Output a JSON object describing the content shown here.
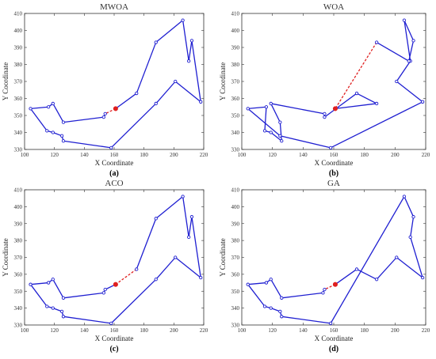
{
  "chart_data": [
    {
      "type": "line",
      "title": "MWOA",
      "caption": "(a)",
      "xlabel": "X Coordinate",
      "ylabel": "Y Coordinate",
      "xlim": [
        100,
        220
      ],
      "ylim": [
        330,
        410
      ],
      "xticks": [
        "100",
        "120",
        "140",
        "160",
        "180",
        "200",
        "220"
      ],
      "yticks": [
        "330",
        "340",
        "350",
        "360",
        "370",
        "380",
        "390",
        "400",
        "410"
      ],
      "grid": false,
      "line_color": "#1f1fd1",
      "start_color": "#e02020",
      "route": [
        [
          161,
          354
        ],
        [
          154,
          351
        ],
        [
          153,
          349
        ],
        [
          126,
          346
        ],
        [
          119,
          357
        ],
        [
          116,
          355
        ],
        [
          104,
          354
        ],
        [
          115,
          341
        ],
        [
          119,
          340
        ],
        [
          125,
          338
        ],
        [
          126,
          335
        ],
        [
          158,
          331
        ],
        [
          188,
          357
        ],
        [
          201,
          370
        ],
        [
          218,
          358
        ],
        [
          212,
          394
        ],
        [
          210,
          382
        ],
        [
          206,
          406
        ],
        [
          188,
          393
        ],
        [
          175,
          363
        ],
        [
          161,
          354
        ]
      ],
      "dashed_segments": [
        [
          0,
          1
        ]
      ]
    },
    {
      "type": "line",
      "title": "WOA",
      "caption": "(b)",
      "xlabel": "X Coordinate",
      "ylabel": "Y Coordinate",
      "xlim": [
        100,
        220
      ],
      "ylim": [
        330,
        410
      ],
      "xticks": [
        "100",
        "120",
        "140",
        "160",
        "180",
        "200",
        "220"
      ],
      "yticks": [
        "330",
        "340",
        "350",
        "360",
        "370",
        "380",
        "390",
        "400",
        "410"
      ],
      "grid": false,
      "line_color": "#1f1fd1",
      "start_color": "#e02020",
      "route": [
        [
          161,
          354
        ],
        [
          188,
          357
        ],
        [
          175,
          363
        ],
        [
          154,
          349
        ],
        [
          154,
          351
        ],
        [
          119,
          357
        ],
        [
          125,
          346
        ],
        [
          126,
          335
        ],
        [
          119,
          340
        ],
        [
          115,
          341
        ],
        [
          116,
          355
        ],
        [
          104,
          354
        ],
        [
          125,
          338
        ],
        [
          158,
          331
        ],
        [
          218,
          358
        ],
        [
          201,
          370
        ],
        [
          210,
          382
        ],
        [
          206,
          406
        ],
        [
          212,
          394
        ],
        [
          209,
          382
        ],
        [
          188,
          393
        ],
        [
          161,
          354
        ]
      ],
      "dashed_segments": [
        [
          20,
          21
        ]
      ]
    },
    {
      "type": "line",
      "title": "ACO",
      "caption": "(c)",
      "xlabel": "X Coordinate",
      "ylabel": "Y Coordinate",
      "xlim": [
        100,
        220
      ],
      "ylim": [
        330,
        410
      ],
      "xticks": [
        "100",
        "120",
        "140",
        "160",
        "180",
        "200",
        "220"
      ],
      "yticks": [
        "330",
        "340",
        "350",
        "360",
        "370",
        "380",
        "390",
        "400",
        "410"
      ],
      "grid": false,
      "line_color": "#1f1fd1",
      "start_color": "#e02020",
      "route": [
        [
          161,
          354
        ],
        [
          154,
          351
        ],
        [
          153,
          349
        ],
        [
          126,
          346
        ],
        [
          119,
          357
        ],
        [
          116,
          355
        ],
        [
          104,
          354
        ],
        [
          115,
          341
        ],
        [
          119,
          340
        ],
        [
          125,
          338
        ],
        [
          126,
          335
        ],
        [
          158,
          331
        ],
        [
          188,
          357
        ],
        [
          201,
          370
        ],
        [
          218,
          358
        ],
        [
          212,
          394
        ],
        [
          210,
          382
        ],
        [
          206,
          406
        ],
        [
          188,
          393
        ],
        [
          175,
          363
        ],
        [
          161,
          354
        ]
      ],
      "dashed_segments": [
        [
          19,
          20
        ]
      ]
    },
    {
      "type": "line",
      "title": "GA",
      "caption": "(d)",
      "xlabel": "X Coordinate",
      "ylabel": "Y Coordinate",
      "xlim": [
        100,
        220
      ],
      "ylim": [
        330,
        410
      ],
      "xticks": [
        "100",
        "120",
        "140",
        "160",
        "180",
        "200",
        "220"
      ],
      "yticks": [
        "330",
        "340",
        "350",
        "360",
        "370",
        "380",
        "390",
        "400",
        "410"
      ],
      "grid": false,
      "line_color": "#1f1fd1",
      "start_color": "#e02020",
      "route": [
        [
          161,
          354
        ],
        [
          154,
          351
        ],
        [
          153,
          349
        ],
        [
          126,
          346
        ],
        [
          119,
          357
        ],
        [
          116,
          355
        ],
        [
          104,
          354
        ],
        [
          115,
          341
        ],
        [
          119,
          340
        ],
        [
          125,
          338
        ],
        [
          126,
          335
        ],
        [
          158,
          331
        ],
        [
          206,
          406
        ],
        [
          212,
          394
        ],
        [
          210,
          382
        ],
        [
          218,
          358
        ],
        [
          201,
          370
        ],
        [
          188,
          357
        ],
        [
          175,
          363
        ],
        [
          161,
          354
        ]
      ],
      "dashed_segments": [
        [
          0,
          1
        ]
      ]
    }
  ]
}
